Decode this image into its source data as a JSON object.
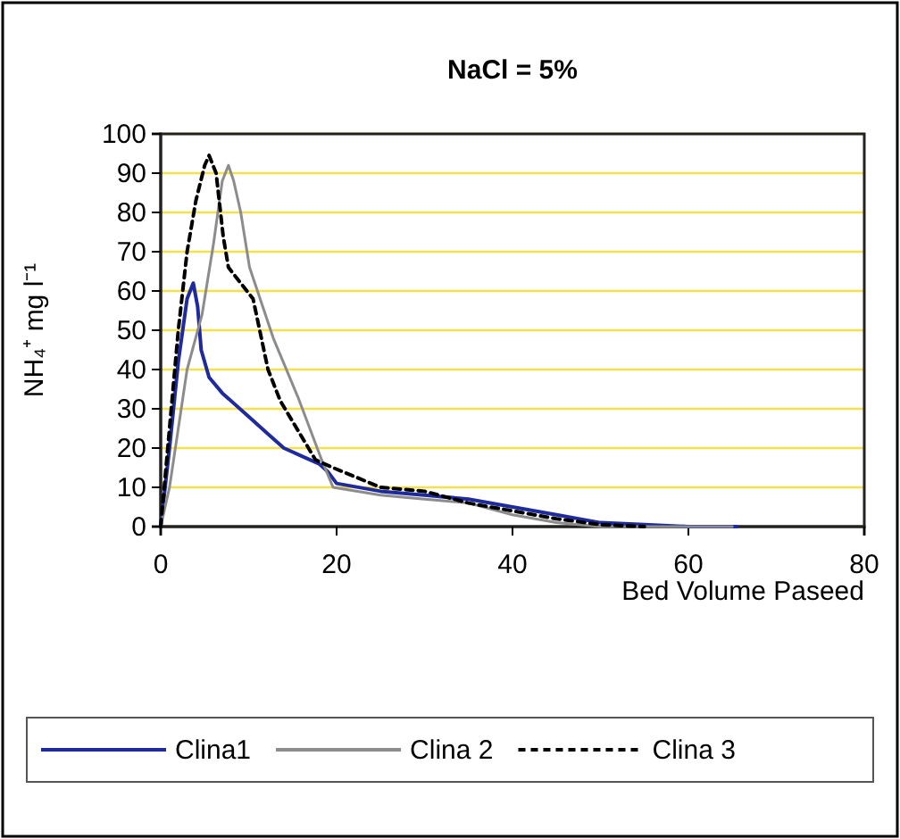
{
  "chart_data": {
    "type": "line",
    "title": "NaCl = 5%",
    "xlabel": "Bed Volume Paseed",
    "ylabel": "NH₄⁺ mg l⁻¹",
    "xlim": [
      0,
      80
    ],
    "xticks": [
      0,
      20,
      40,
      60,
      80
    ],
    "ylim": [
      0,
      100
    ],
    "yticks": [
      0,
      10,
      20,
      30,
      40,
      50,
      60,
      70,
      80,
      90,
      100
    ],
    "grid": "y",
    "legend": "bottom",
    "marker": "none",
    "series": [
      {
        "name": "Clina1",
        "color": "#1f2a9c",
        "line_style": "solid",
        "x": [
          0,
          1,
          2,
          3,
          3.7,
          4.2,
          4.6,
          5.5,
          7,
          10,
          12,
          14,
          16,
          18,
          19,
          20,
          25,
          30,
          35,
          40,
          45,
          50,
          55,
          60,
          65.5
        ],
        "values": [
          0,
          20,
          42,
          58,
          62,
          56,
          45,
          38,
          34,
          28,
          24,
          20,
          18,
          16,
          14,
          11,
          9,
          8,
          7,
          5,
          3,
          1,
          0.5,
          0,
          0
        ]
      },
      {
        "name": "Clina 2",
        "color": "#8c8c8c",
        "line_style": "solid",
        "x": [
          0,
          1,
          2,
          3,
          4.7,
          6,
          7,
          7.7,
          8.3,
          9.1,
          10.1,
          12.8,
          15.6,
          18.3,
          19.6,
          25,
          30,
          35,
          40,
          45,
          50,
          55,
          60,
          65
        ],
        "values": [
          0,
          10,
          25,
          40,
          54,
          72,
          88,
          92,
          88,
          80,
          66,
          48,
          33,
          17,
          10,
          8,
          7,
          6,
          3,
          1,
          0,
          0,
          0,
          0
        ]
      },
      {
        "name": "Clina 3",
        "color": "#000000",
        "line_style": "dashed",
        "x": [
          0,
          1,
          2,
          3,
          4,
          5,
          5.5,
          6.3,
          7.1,
          7.7,
          10.5,
          12.2,
          13.6,
          17.6,
          19.6,
          25,
          30,
          35,
          40,
          45,
          50,
          55
        ],
        "values": [
          0,
          25,
          50,
          70,
          83,
          92,
          94.5,
          90,
          74,
          66,
          58,
          40,
          32,
          17,
          15,
          10,
          9,
          6,
          4,
          2,
          0.5,
          0
        ]
      }
    ]
  }
}
